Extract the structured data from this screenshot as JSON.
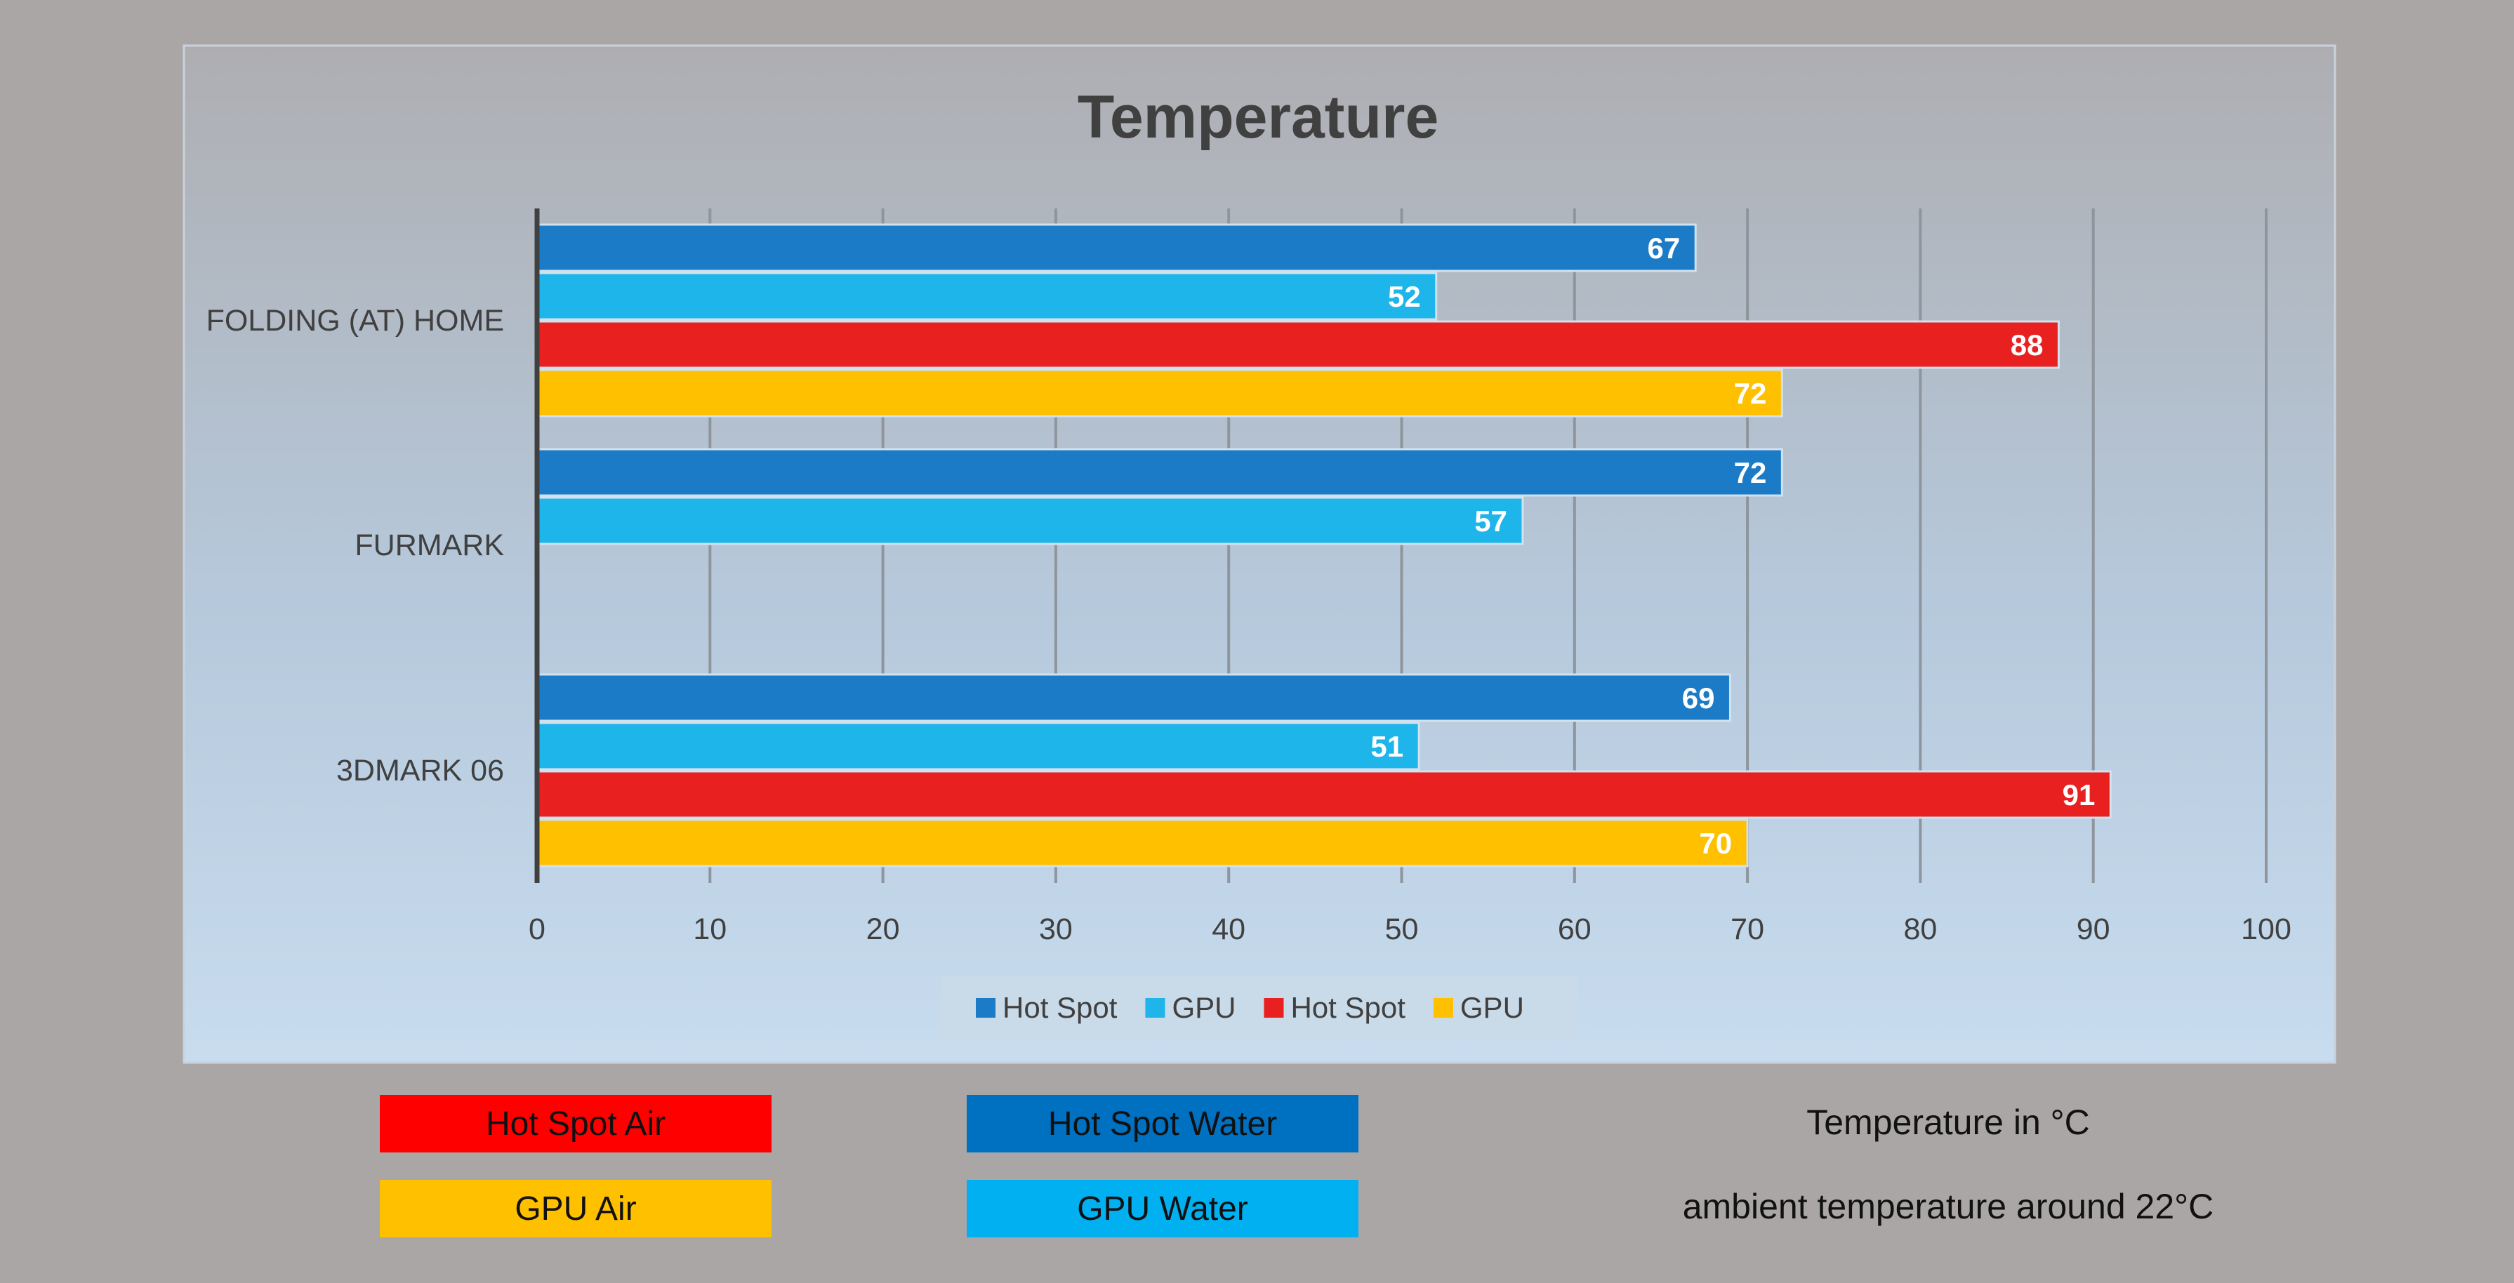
{
  "chart_data": {
    "type": "bar",
    "orientation": "horizontal",
    "title": "Temperature",
    "categories": [
      "FOLDING (AT) HOME",
      "FURMARK",
      "3DMARK 06"
    ],
    "series": [
      {
        "name": "Hot Spot",
        "color": "#1c7bc6",
        "values": [
          67,
          72,
          69
        ]
      },
      {
        "name": "GPU",
        "color": "#1db5ea",
        "values": [
          52,
          57,
          51
        ]
      },
      {
        "name": "Hot Spot",
        "color": "#e82020",
        "values": [
          88,
          null,
          91
        ]
      },
      {
        "name": "GPU",
        "color": "#ffc000",
        "values": [
          72,
          null,
          70
        ]
      }
    ],
    "xlim": [
      0,
      100
    ],
    "xticks": [
      0,
      10,
      20,
      30,
      40,
      50,
      60,
      70,
      80,
      90,
      100
    ],
    "grid": true,
    "legend_position": "bottom"
  },
  "key": [
    {
      "label": "Hot Spot Air",
      "color": "#ff0000"
    },
    {
      "label": "Hot Spot Water",
      "color": "#0070c0"
    },
    {
      "label": "GPU Air",
      "color": "#ffc000"
    },
    {
      "label": "GPU Water",
      "color": "#00b0f0"
    }
  ],
  "notes": {
    "unit": "Temperature in °C",
    "ambient": "ambient temperature around 22°C"
  }
}
